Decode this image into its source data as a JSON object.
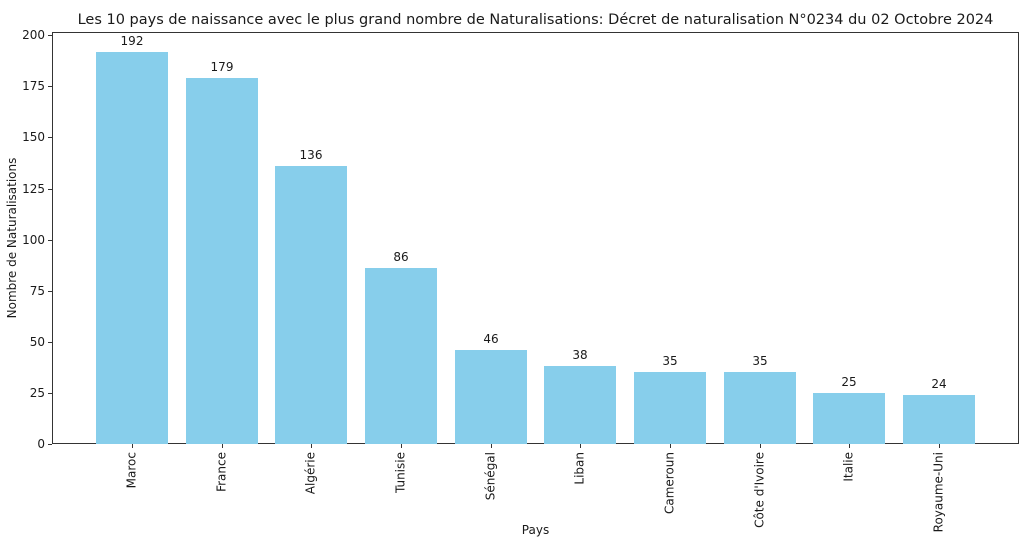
{
  "chart_data": {
    "type": "bar",
    "title": "Les 10 pays de naissance avec le plus grand nombre de Naturalisations: Décret de naturalisation N°0234 du 02 Octobre 2024",
    "xlabel": "Pays",
    "ylabel": "Nombre de Naturalisations",
    "categories": [
      "Maroc",
      "France",
      "Algérie",
      "Tunisie",
      "Sénégal",
      "Liban",
      "Cameroun",
      "Côte d'Ivoire",
      "Italie",
      "Royaume-Uni"
    ],
    "values": [
      192,
      179,
      136,
      86,
      46,
      38,
      35,
      35,
      25,
      24
    ],
    "yticks": [
      0,
      25,
      50,
      75,
      100,
      125,
      150,
      175,
      200
    ],
    "ylim": [
      0,
      201.6
    ],
    "bar_color": "#87CEEB",
    "grid": false,
    "legend": "none",
    "value_labels": true,
    "x_tick_rotation": 90
  }
}
